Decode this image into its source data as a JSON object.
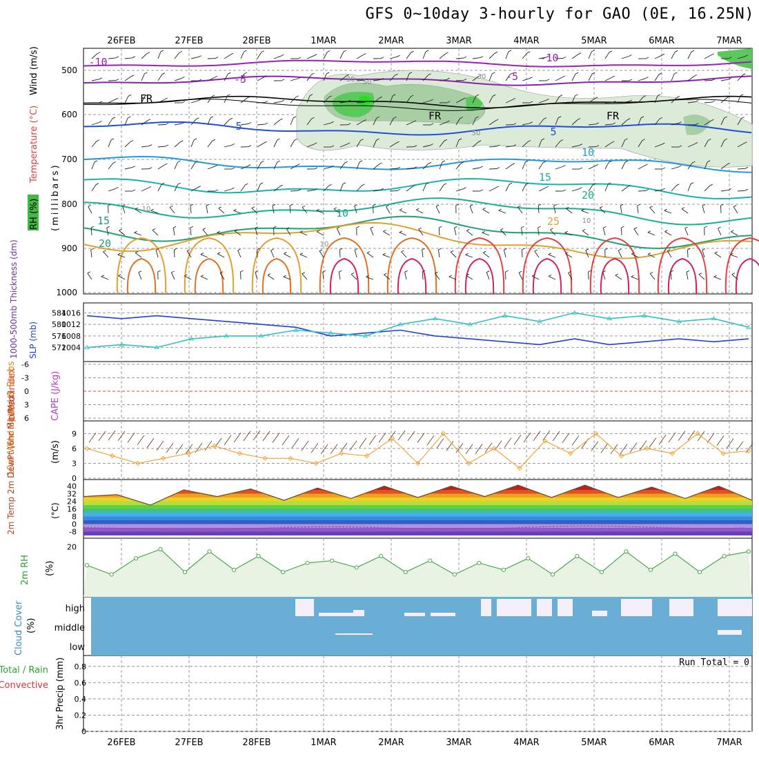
{
  "title": "GFS 0~10day 3-hourly for GAO (0E, 16.25N)",
  "dates": [
    "26FEB",
    "27FEB",
    "28FEB",
    "1MAR",
    "2MAR",
    "3MAR",
    "4MAR",
    "5MAR",
    "6MAR",
    "7MAR"
  ],
  "colors": {
    "temp_contour": "#e05020",
    "thickness": "#1f3fd0",
    "slp": "#30c0c0",
    "wind_speed": "#f0a030",
    "rh_line": "#40a040",
    "cloud": "#6aaed6",
    "precip_green": "#30a030",
    "convective_red": "#e03030"
  },
  "panels": {
    "upper": {
      "label_wind": "Wind (m/s)",
      "label_temp": "Temperature (°C)",
      "label_rh": "RH (%)",
      "label_mb": "(millibars)",
      "y_ticks": [
        "500",
        "600",
        "700",
        "800",
        "900",
        "1000"
      ],
      "temp_labels": [
        "-10",
        "-5",
        "FR",
        "5",
        "10",
        "15",
        "20",
        "25",
        "-10",
        "-5",
        "FR",
        "5",
        "10",
        "15",
        "20",
        "FR"
      ],
      "rh_labels": [
        "30",
        "50",
        "10",
        "10",
        "30",
        "50",
        "10"
      ]
    },
    "thickness": {
      "label_left": "1000-500mb Thickness (dm)",
      "label_right": "SLP (mb)",
      "left_ticks": [
        "584",
        "580",
        "576",
        "572"
      ],
      "right_ticks": [
        "1016",
        "1012",
        "1008",
        "1004"
      ]
    },
    "stability": {
      "label_left": "Lifted Index",
      "label_right": "CAPE (J/kg)",
      "ticks": [
        "-6",
        "-3",
        "0",
        "3",
        "6"
      ]
    },
    "wind10m": {
      "label": "10m Wind Speed & Barbs",
      "label_unit": "(m/s)",
      "ticks": [
        "9",
        "6",
        "3",
        "0"
      ]
    },
    "temp2m": {
      "label": "2m Temp 2m DewPt (6hr Min/Max)",
      "label_unit": "(°C)",
      "ticks": [
        "40",
        "32",
        "24",
        "16",
        "8",
        "0",
        "-8"
      ]
    },
    "rh2m": {
      "label": "2m RH",
      "label_unit": "(%)",
      "ticks": [
        "20"
      ]
    },
    "cloud": {
      "label": "Cloud Cover",
      "label_unit": "(%)",
      "levels": [
        "high",
        "middle",
        "low"
      ]
    },
    "precip": {
      "label_total": "Total / Rain",
      "label_conv": "Convective",
      "label_unit": "3hr Precip (mm)",
      "ticks": [
        "0.8",
        "0.6",
        "0.4",
        "0.2",
        "0"
      ],
      "run_total": "Run Total = 0"
    }
  },
  "chart_data": {
    "type": "line",
    "x": [
      "26FEB",
      "27FEB",
      "28FEB",
      "1MAR",
      "2MAR",
      "3MAR",
      "4MAR",
      "5MAR",
      "6MAR",
      "7MAR"
    ],
    "thickness_dm": [
      583,
      582,
      583,
      582,
      581,
      580,
      579,
      576,
      577,
      578,
      576,
      575,
      574,
      573,
      575,
      573,
      574,
      575,
      574,
      575
    ],
    "slp_mb": [
      1004,
      1005,
      1004,
      1007,
      1008,
      1008,
      1010,
      1009,
      1008,
      1012,
      1014,
      1012,
      1015,
      1013,
      1016,
      1014,
      1015,
      1013,
      1014,
      1011
    ],
    "wind10m_ms": [
      6,
      4.5,
      3,
      4,
      5,
      6.5,
      5,
      4,
      4,
      3,
      5,
      4.5,
      8,
      3,
      9,
      3,
      6,
      2,
      7.5,
      5,
      9,
      4.5,
      6,
      5,
      9,
      5,
      5.5
    ],
    "temp2m_c": [
      29,
      31,
      20,
      36,
      29,
      37,
      25,
      38,
      27,
      40,
      28,
      40,
      29,
      41,
      28,
      41,
      28,
      39,
      27,
      40,
      25
    ],
    "rh2m_pct": [
      12,
      8,
      15,
      19,
      9,
      18,
      10,
      16,
      9,
      13,
      14,
      11,
      16,
      9,
      14,
      8,
      13,
      10,
      15,
      8,
      16,
      9,
      18,
      10,
      17,
      9,
      16,
      18
    ]
  }
}
